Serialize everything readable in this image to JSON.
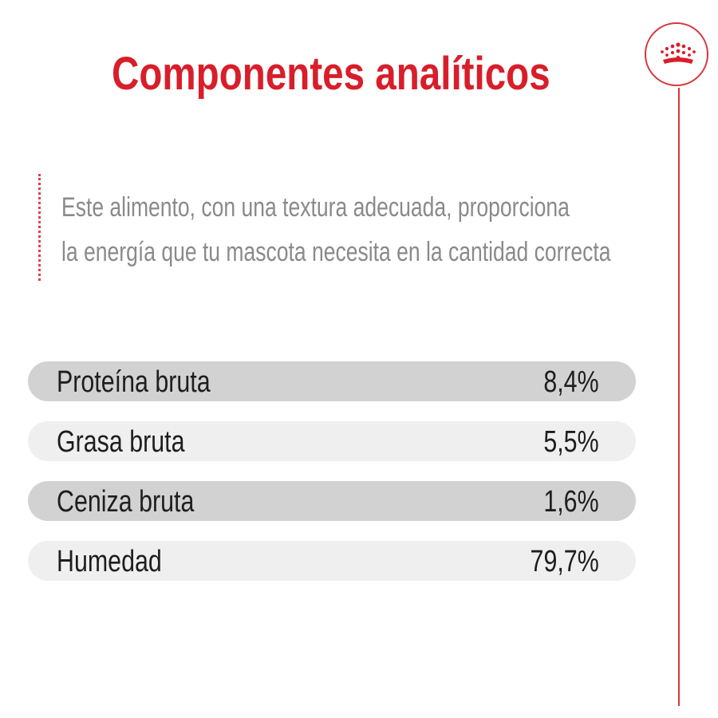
{
  "header": {
    "title": "Componentes analíticos",
    "logo_icon": "crown-icon",
    "accent_color": "#d81e2a"
  },
  "intro": {
    "line1": "Este alimento, con una textura adecuada, proporciona",
    "line2": "la energía que tu mascota necesita en la cantidad correcta"
  },
  "components": [
    {
      "label": "Proteína bruta",
      "value": "8,4%"
    },
    {
      "label": "Grasa bruta",
      "value": "5,5%"
    },
    {
      "label": "Ceniza bruta",
      "value": "1,6%"
    },
    {
      "label": "Humedad",
      "value": "79,7%"
    }
  ]
}
